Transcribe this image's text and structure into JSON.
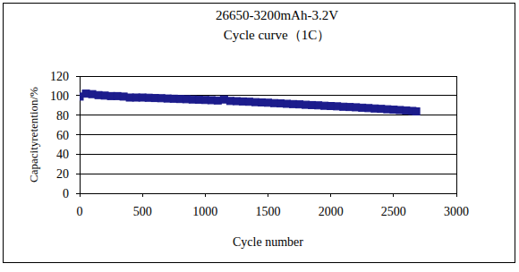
{
  "chart_data": {
    "type": "line",
    "title": "26650-3200mAh-3.2V",
    "subtitle": "Cycle curve（1C）",
    "x_label": "Cycle number",
    "y_label": "Capacityretention/%",
    "x": [
      0,
      50,
      100,
      150,
      200,
      250,
      300,
      350,
      400,
      450,
      500,
      550,
      600,
      650,
      700,
      750,
      800,
      850,
      900,
      950,
      1000,
      1050,
      1100,
      1150,
      1200,
      1250,
      1300,
      1350,
      1400,
      1450,
      1500,
      1550,
      1600,
      1650,
      1700,
      1750,
      1800,
      1850,
      1900,
      1950,
      2000,
      2050,
      2100,
      2150,
      2200,
      2250,
      2300,
      2350,
      2400,
      2450,
      2500,
      2550,
      2600,
      2650,
      2680
    ],
    "series": [
      {
        "name": "Capacity retention",
        "color": "#1c1c8c",
        "marker": "square",
        "line_style": "solid",
        "values": [
          99,
          102,
          101.5,
          100.5,
          100,
          99.5,
          99.5,
          99,
          98,
          98,
          98,
          97.8,
          97.5,
          97.3,
          97,
          96.8,
          96.5,
          96.3,
          96,
          95.8,
          95.5,
          95.3,
          95,
          96,
          94.5,
          94.3,
          94,
          93.7,
          93.3,
          93,
          92.7,
          92.3,
          92,
          91.6,
          91.3,
          91,
          90.6,
          90.3,
          90,
          89.6,
          89.3,
          89,
          88.6,
          88.3,
          88,
          87.6,
          87.2,
          86.8,
          86.4,
          86,
          85.6,
          85.2,
          84.8,
          84.3,
          83.8
        ]
      }
    ],
    "xlim": [
      0,
      3000
    ],
    "xticks": [
      0,
      500,
      1000,
      1500,
      2000,
      2500,
      3000
    ],
    "ylim": [
      0,
      120
    ],
    "yticks": [
      0,
      20,
      40,
      60,
      80,
      100,
      120
    ],
    "grid": true
  }
}
